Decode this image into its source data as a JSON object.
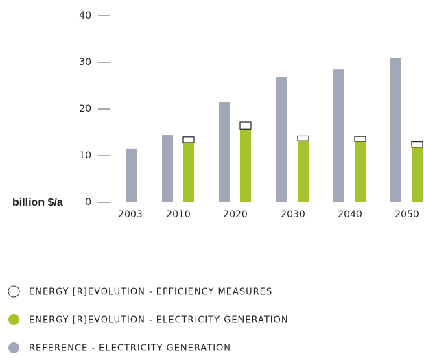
{
  "chart_data": {
    "type": "bar",
    "y_label": "billion $/a",
    "categories": [
      "2003",
      "2010",
      "2020",
      "2030",
      "2040",
      "2050"
    ],
    "series": [
      {
        "name": "ENERGY [R]EVOLUTION - EFFICIENCY MEASURES",
        "color": "#ffffff",
        "stack": "er",
        "values": [
          null,
          1.2,
          1.5,
          1.0,
          1.0,
          1.2
        ]
      },
      {
        "name": "ENERGY [R]EVOLUTION - ELECTRICITY GENERATION",
        "color": "#a5c32b",
        "stack": "er",
        "values": [
          null,
          12.8,
          15.7,
          13.2,
          13.1,
          11.8
        ]
      },
      {
        "name": "REFERENCE - ELECTRICITY GENERATION",
        "color": "#a3a8b8",
        "stack": "ref",
        "values": [
          11.5,
          14.4,
          21.6,
          26.8,
          28.5,
          30.9
        ]
      }
    ],
    "ylim": [
      0,
      40
    ],
    "yticks": [
      0,
      10,
      20,
      30,
      40
    ]
  }
}
